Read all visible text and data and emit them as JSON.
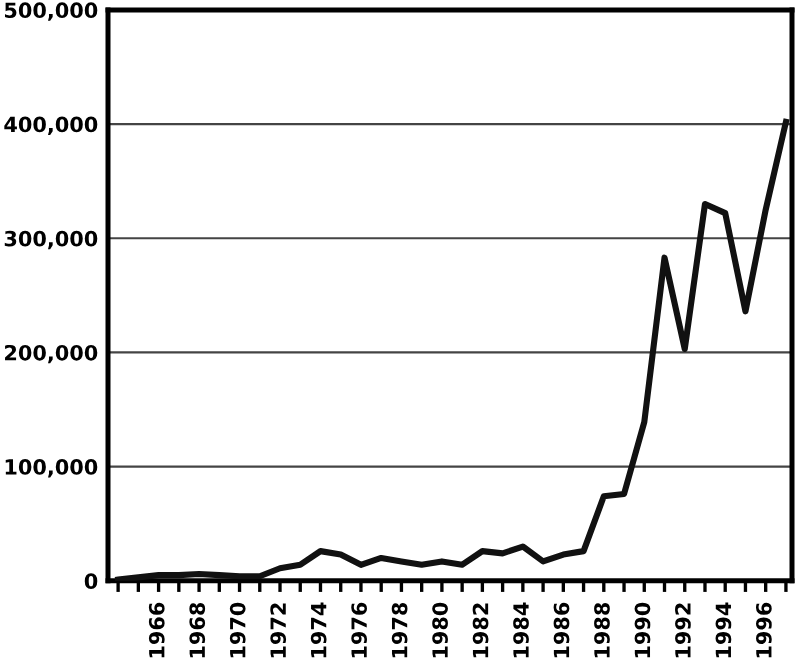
{
  "chart_data": {
    "type": "line",
    "x": [
      1964,
      1965,
      1966,
      1967,
      1968,
      1969,
      1970,
      1971,
      1972,
      1973,
      1974,
      1975,
      1976,
      1977,
      1978,
      1979,
      1980,
      1981,
      1982,
      1983,
      1984,
      1985,
      1986,
      1987,
      1988,
      1989,
      1990,
      1991,
      1992,
      1993,
      1994,
      1995,
      1996,
      1997
    ],
    "series": [
      {
        "color": "#111111",
        "values": [
          1000,
          3000,
          5000,
          5000,
          6000,
          5000,
          4000,
          4000,
          11000,
          14000,
          26000,
          23000,
          14000,
          20000,
          17000,
          14000,
          17000,
          14000,
          26000,
          24000,
          30000,
          17000,
          23000,
          26000,
          74000,
          76000,
          139000,
          283000,
          203000,
          330000,
          322000,
          236000,
          325000,
          402000
        ]
      }
    ],
    "xlim": [
      1963.5,
      1997.3
    ],
    "xticks": [
      {
        "value": 1964,
        "label": null
      },
      {
        "value": 1965,
        "label": null
      },
      {
        "value": 1966,
        "label": "1966"
      },
      {
        "value": 1967,
        "label": null
      },
      {
        "value": 1968,
        "label": "1968"
      },
      {
        "value": 1969,
        "label": null
      },
      {
        "value": 1970,
        "label": "1970"
      },
      {
        "value": 1971,
        "label": null
      },
      {
        "value": 1972,
        "label": "1972"
      },
      {
        "value": 1973,
        "label": null
      },
      {
        "value": 1974,
        "label": "1974"
      },
      {
        "value": 1975,
        "label": null
      },
      {
        "value": 1976,
        "label": "1976"
      },
      {
        "value": 1977,
        "label": null
      },
      {
        "value": 1978,
        "label": "1978"
      },
      {
        "value": 1979,
        "label": null
      },
      {
        "value": 1980,
        "label": "1980"
      },
      {
        "value": 1981,
        "label": null
      },
      {
        "value": 1982,
        "label": "1982"
      },
      {
        "value": 1983,
        "label": null
      },
      {
        "value": 1984,
        "label": "1984"
      },
      {
        "value": 1985,
        "label": null
      },
      {
        "value": 1986,
        "label": "1986"
      },
      {
        "value": 1987,
        "label": null
      },
      {
        "value": 1988,
        "label": "1988"
      },
      {
        "value": 1989,
        "label": null
      },
      {
        "value": 1990,
        "label": "1990"
      },
      {
        "value": 1991,
        "label": null
      },
      {
        "value": 1992,
        "label": "1992"
      },
      {
        "value": 1993,
        "label": null
      },
      {
        "value": 1994,
        "label": "1994"
      },
      {
        "value": 1995,
        "label": null
      },
      {
        "value": 1996,
        "label": "1996"
      },
      {
        "value": 1997,
        "label": null
      }
    ],
    "ylim": [
      0,
      500000
    ],
    "yticks": [
      {
        "value": 0,
        "label": "0"
      },
      {
        "value": 100000,
        "label": "100,000"
      },
      {
        "value": 200000,
        "label": "200,000"
      },
      {
        "value": 300000,
        "label": "300,000"
      },
      {
        "value": 400000,
        "label": "400,000"
      },
      {
        "value": 500000,
        "label": "500,000"
      }
    ],
    "grid": "y",
    "marker": "none",
    "line_style": "solid"
  }
}
